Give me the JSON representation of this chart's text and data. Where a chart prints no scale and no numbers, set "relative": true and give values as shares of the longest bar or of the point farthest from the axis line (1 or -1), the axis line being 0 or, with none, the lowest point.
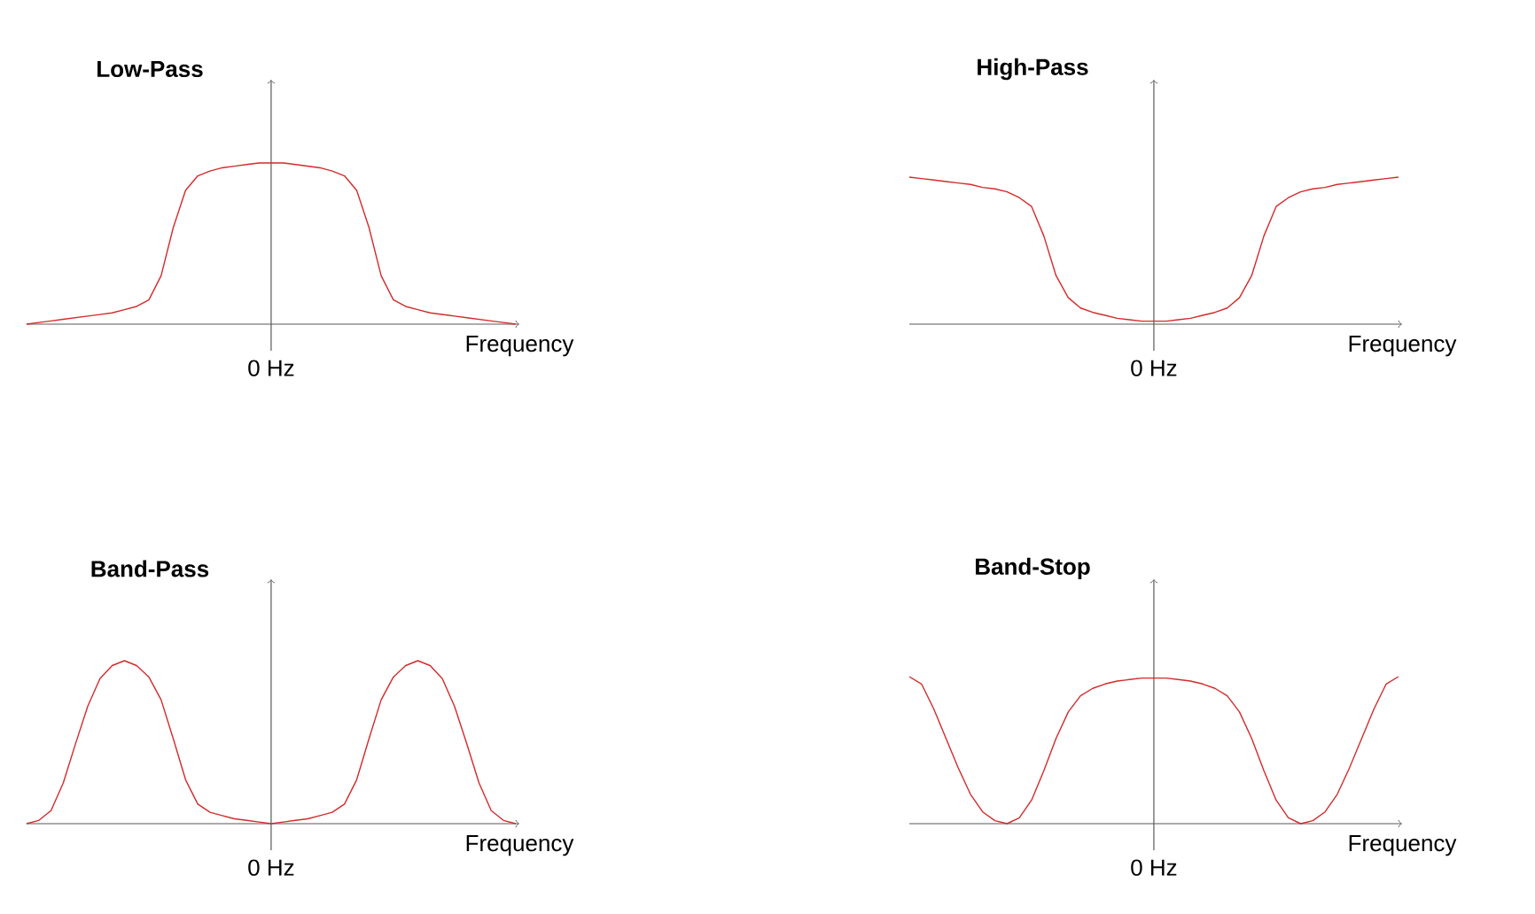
{
  "chart_data": [
    {
      "type": "line",
      "title": "Low-Pass",
      "xlabel": "Frequency",
      "relative": true,
      "color": "#d42a2a",
      "annotations": [
        "0 Hz"
      ],
      "categories": [
        null,
        null,
        null,
        null,
        null,
        null,
        null,
        null,
        null,
        null,
        null,
        null,
        null,
        null,
        null,
        null,
        null,
        null,
        null,
        null,
        null,
        null,
        null,
        null,
        null,
        null,
        null,
        null,
        null,
        null,
        null,
        null,
        null,
        null,
        null,
        null,
        null,
        null,
        null,
        null,
        null
      ],
      "values": [
        0.0,
        0.01,
        0.02,
        0.03,
        0.04,
        0.05,
        0.06,
        0.07,
        0.09,
        0.11,
        0.15,
        0.3,
        0.6,
        0.83,
        0.92,
        0.95,
        0.97,
        0.98,
        0.99,
        1.0,
        1.0,
        1.0,
        0.99,
        0.98,
        0.97,
        0.95,
        0.92,
        0.83,
        0.6,
        0.3,
        0.15,
        0.11,
        0.09,
        0.07,
        0.06,
        0.05,
        0.04,
        0.03,
        0.02,
        0.01,
        0.0
      ]
    },
    {
      "type": "line",
      "title": "High-Pass",
      "xlabel": "Frequency",
      "relative": true,
      "color": "#d42a2a",
      "annotations": [
        "0 Hz"
      ],
      "categories": [
        null,
        null,
        null,
        null,
        null,
        null,
        null,
        null,
        null,
        null,
        null,
        null,
        null,
        null,
        null,
        null,
        null,
        null,
        null,
        null,
        null,
        null,
        null,
        null,
        null,
        null,
        null,
        null,
        null,
        null,
        null,
        null,
        null,
        null,
        null,
        null,
        null,
        null,
        null,
        null,
        null
      ],
      "values": [
        1.0,
        0.99,
        0.98,
        0.97,
        0.96,
        0.95,
        0.93,
        0.92,
        0.9,
        0.86,
        0.8,
        0.6,
        0.33,
        0.18,
        0.11,
        0.08,
        0.06,
        0.04,
        0.03,
        0.02,
        0.02,
        0.02,
        0.03,
        0.04,
        0.06,
        0.08,
        0.11,
        0.18,
        0.33,
        0.6,
        0.8,
        0.86,
        0.9,
        0.92,
        0.93,
        0.95,
        0.96,
        0.97,
        0.98,
        0.99,
        1.0
      ]
    },
    {
      "type": "line",
      "title": "Band-Pass",
      "xlabel": "Frequency",
      "relative": true,
      "color": "#d42a2a",
      "annotations": [
        "0 Hz"
      ],
      "categories": [
        null,
        null,
        null,
        null,
        null,
        null,
        null,
        null,
        null,
        null,
        null,
        null,
        null,
        null,
        null,
        null,
        null,
        null,
        null,
        null,
        null,
        null,
        null,
        null,
        null,
        null,
        null,
        null,
        null,
        null,
        null,
        null,
        null,
        null,
        null,
        null,
        null,
        null,
        null,
        null,
        null
      ],
      "values": [
        0.0,
        0.02,
        0.08,
        0.25,
        0.49,
        0.72,
        0.89,
        0.97,
        1.0,
        0.97,
        0.9,
        0.76,
        0.52,
        0.27,
        0.12,
        0.07,
        0.05,
        0.03,
        0.02,
        0.01,
        0.0,
        0.01,
        0.02,
        0.03,
        0.05,
        0.07,
        0.12,
        0.27,
        0.52,
        0.76,
        0.9,
        0.97,
        1.0,
        0.97,
        0.89,
        0.72,
        0.49,
        0.25,
        0.08,
        0.02,
        0.0
      ]
    },
    {
      "type": "line",
      "title": "Band-Stop",
      "xlabel": "Frequency",
      "relative": true,
      "color": "#d42a2a",
      "annotations": [
        "0 Hz"
      ],
      "categories": [
        null,
        null,
        null,
        null,
        null,
        null,
        null,
        null,
        null,
        null,
        null,
        null,
        null,
        null,
        null,
        null,
        null,
        null,
        null,
        null,
        null,
        null,
        null,
        null,
        null,
        null,
        null,
        null,
        null,
        null,
        null,
        null,
        null,
        null,
        null,
        null,
        null,
        null,
        null,
        null,
        null
      ],
      "values": [
        1.0,
        0.95,
        0.78,
        0.58,
        0.38,
        0.2,
        0.08,
        0.02,
        0.0,
        0.04,
        0.16,
        0.36,
        0.58,
        0.76,
        0.87,
        0.92,
        0.95,
        0.97,
        0.98,
        0.99,
        0.99,
        0.99,
        0.98,
        0.97,
        0.95,
        0.92,
        0.87,
        0.76,
        0.58,
        0.36,
        0.16,
        0.04,
        0.0,
        0.02,
        0.08,
        0.2,
        0.38,
        0.58,
        0.78,
        0.95,
        1.0
      ]
    }
  ]
}
